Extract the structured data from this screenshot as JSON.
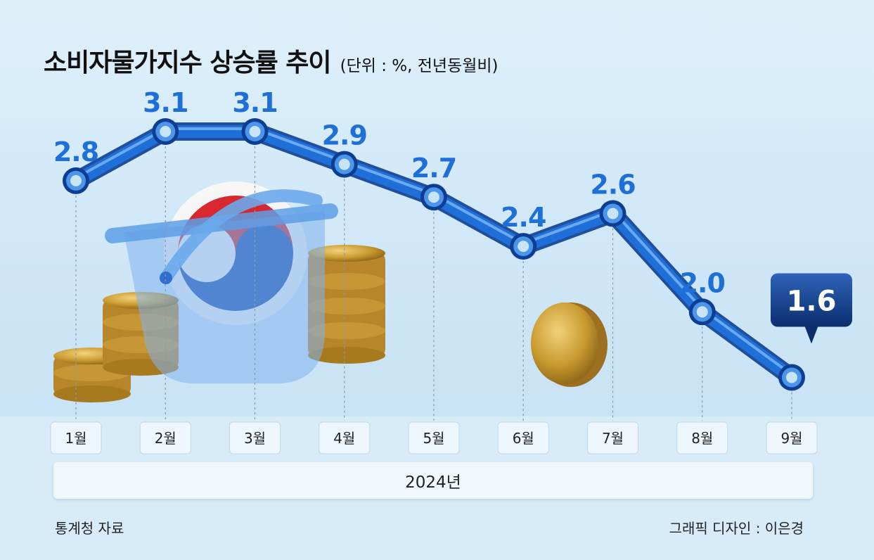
{
  "title": "소비자물가지수 상승률 추이",
  "subtitle": "(단위 : %, 전년동월비)",
  "chart_data": {
    "type": "line",
    "title": "소비자물가지수 상승률 추이",
    "subtitle": "(단위 : %, 전년동월비)",
    "categories": [
      "1월",
      "2월",
      "3월",
      "4월",
      "5월",
      "6월",
      "7월",
      "8월",
      "9월"
    ],
    "values": [
      2.8,
      3.1,
      3.1,
      2.9,
      2.7,
      2.4,
      2.6,
      2.0,
      1.6
    ],
    "value_labels": [
      "2.8",
      "3.1",
      "3.1",
      "2.9",
      "2.7",
      "2.4",
      "2.6",
      "2.0",
      "1.6"
    ],
    "xlabel": "2024년",
    "ylabel": "",
    "highlight_index": 8,
    "grid": false,
    "line_color": "#1f6fd8",
    "highlight_color": "#0f3b86"
  },
  "source": "통계청 자료",
  "credit": "그래픽 디자인 : 이은경"
}
